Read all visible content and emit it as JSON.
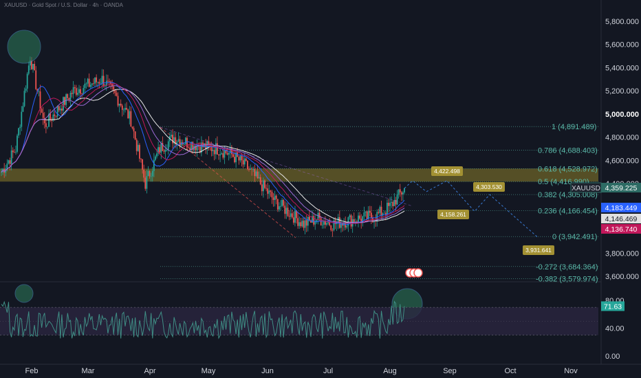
{
  "header": {
    "title": "XAUUSD · Gold Spot / U.S. Dollar · 4h · OANDA"
  },
  "colors": {
    "background": "#131722",
    "candle_up": "#26a69a",
    "candle_down": "#ef5350",
    "zone": "#8d7d2a",
    "fib": "#5ab8a8",
    "projection": "#3a7bd5",
    "label_box": "#a39133",
    "circle_fill": "#2e7d5b",
    "ma_white": "#e8e8e8",
    "ma_blue": "#2962ff",
    "ma_pink": "#c2185b",
    "ma_purple": "#9c6ad6",
    "osc_line": "#3f8e85",
    "osc_band": "#2a2540"
  },
  "price_axis": {
    "ticks": [
      "5,800.000",
      "5,600.000",
      "5,400.000",
      "5,200.000",
      "5,000.000",
      "4,800.000",
      "4,600.000",
      "4,400.000",
      "3,800.000",
      "3,600.000"
    ],
    "bold_tick": "5,000.000"
  },
  "price_tags": [
    {
      "name": "symbol",
      "text": "XAUUSD",
      "value": "4,359.225",
      "bg": "#2d6b64"
    },
    {
      "name": "ma-blue",
      "value": "4,183.449",
      "bg": "#2962ff"
    },
    {
      "name": "ma-white",
      "value": "4,146.469",
      "bg": "#e0e0e0"
    },
    {
      "name": "ma-pink",
      "value": "4,136.740",
      "bg": "#c2185b"
    }
  ],
  "fib_levels": [
    {
      "ratio": "1",
      "value": "4,891.489",
      "text": "1 (4,891.489)"
    },
    {
      "ratio": "0.786",
      "value": "4,688.403",
      "text": "0.786 (4,688.403)"
    },
    {
      "ratio": "0.618",
      "value": "4,528.972",
      "text": "0.618 (4,528.972)"
    },
    {
      "ratio": "0.5",
      "value": "4,416.990",
      "text": "0.5 (4,416.990)"
    },
    {
      "ratio": "0.382",
      "value": "4,305.008",
      "text": "0.382 (4,305.008)"
    },
    {
      "ratio": "0.236",
      "value": "4,166.454",
      "text": "0.236 (4,166.454)"
    },
    {
      "ratio": "0",
      "value": "3,942.491",
      "text": "0 (3,942.491)"
    },
    {
      "ratio": "-0.272",
      "value": "3,684.364",
      "text": "-0.272 (3,684.364)"
    },
    {
      "ratio": "-0.382",
      "value": "3,579.974",
      "text": "-0.382 (3,579.974)"
    }
  ],
  "projection_labels": [
    "4,422.498",
    "4,303.530",
    "4,158.261",
    "3,931.641"
  ],
  "oscillator": {
    "ticks": [
      "80.00",
      "40.00",
      "0.00"
    ],
    "current": "71.63"
  },
  "time_axis": [
    "Feb",
    "Mar",
    "Apr",
    "May",
    "Jun",
    "Jul",
    "Aug",
    "Sep",
    "Oct",
    "Nov"
  ],
  "chart_data": {
    "type": "candlestick",
    "symbol": "XAUUSD",
    "interval": "4h",
    "x": [
      "Jan-20",
      "Jan-25",
      "Jan-30",
      "Feb-05",
      "Feb-12",
      "Feb-20",
      "Feb-28",
      "Mar-05",
      "Mar-12",
      "Mar-20",
      "Mar-28",
      "Apr-05",
      "Apr-12",
      "Apr-20",
      "Apr-28",
      "May-05",
      "May-12",
      "May-20",
      "May-28",
      "Jun-05",
      "Jun-12",
      "Jun-20",
      "Jun-28",
      "Jul-05",
      "Jul-12",
      "Jul-20",
      "Jul-28",
      "Aug-03",
      "Aug-08"
    ],
    "close": [
      4500,
      4700,
      5500,
      4900,
      5050,
      5200,
      5250,
      5300,
      5150,
      4950,
      4400,
      4700,
      4800,
      4750,
      4720,
      4700,
      4650,
      4550,
      4400,
      4250,
      4150,
      4050,
      4100,
      4050,
      4080,
      4100,
      4120,
      4200,
      4359
    ],
    "ylim": [
      3560,
      5880
    ],
    "oscillator": {
      "ticks": [
        80,
        40,
        0
      ],
      "bands": [
        30,
        70
      ],
      "current": 71.63
    },
    "fib_levels": [
      4891.489,
      4688.403,
      4528.972,
      4416.99,
      4305.008,
      4166.454,
      3942.491,
      3684.364,
      3579.974
    ],
    "projection_path": [
      4359,
      4422.498,
      4330,
      4303.53,
      4158.261,
      4303.53,
      3931.641
    ],
    "zone": [
      4416.99,
      4528.972
    ],
    "moving_averages": {
      "white": 4146.469,
      "blue": 4183.449,
      "pink": 4136.74
    }
  }
}
